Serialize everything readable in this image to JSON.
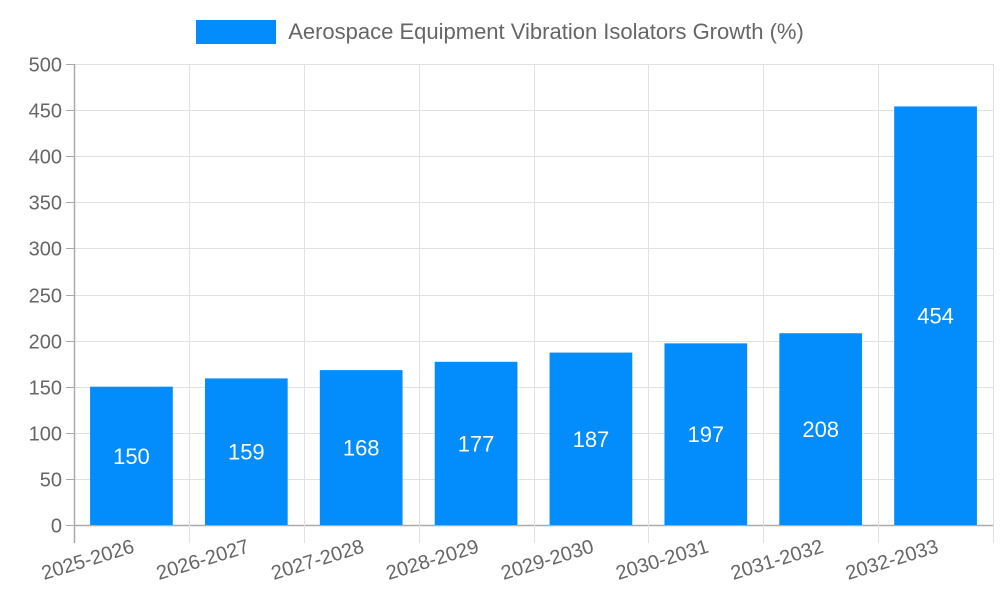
{
  "chart_data": {
    "type": "bar",
    "title": "",
    "legend": [
      "Aerospace Equipment Vibration Isolators Growth (%)"
    ],
    "legend_position": "top",
    "categories": [
      "2025-2026",
      "2026-2027",
      "2027-2028",
      "2028-2029",
      "2029-2030",
      "2030-2031",
      "2031-2032",
      "2032-2033"
    ],
    "series": [
      {
        "name": "Aerospace Equipment Vibration Isolators Growth (%)",
        "values": [
          150,
          159,
          168,
          177,
          187,
          197,
          208,
          454
        ],
        "color": "#038cfc"
      }
    ],
    "data_labels": [
      "150",
      "159",
      "168",
      "177",
      "187",
      "197",
      "208",
      "454"
    ],
    "xlabel": "",
    "ylabel": "",
    "ylim": [
      0,
      500
    ],
    "yticks": [
      "0",
      "50",
      "100",
      "150",
      "200",
      "250",
      "300",
      "350",
      "400",
      "450",
      "500"
    ],
    "grid": true
  },
  "legend": {
    "label": "Aerospace Equipment Vibration Isolators Growth (%)",
    "color": "#038cfc"
  }
}
